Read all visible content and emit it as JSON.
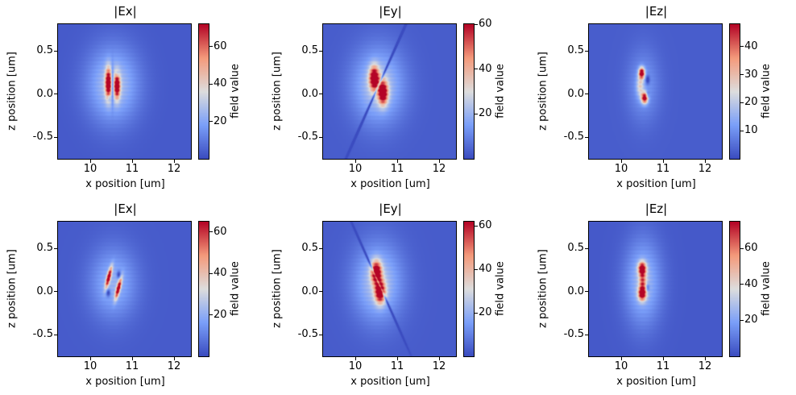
{
  "figure": {
    "background": "#ffffff",
    "xlabel": "x position [um]",
    "ylabel": "z position [um]",
    "colorbar_label": "field value",
    "x_ticks": [
      10,
      11,
      12
    ],
    "x_tick_labels": [
      "10",
      "11",
      "12"
    ],
    "y_ticks": [
      0.5,
      0.0,
      -0.5
    ],
    "y_tick_labels": [
      "0.5",
      "0.0",
      "-0.5"
    ],
    "x_range": [
      9.23,
      12.4
    ],
    "y_range": [
      -0.75,
      0.81
    ],
    "grid": false,
    "colormap": "coolwarm",
    "colormap_anchors": [
      "#3b4cc0",
      "#7b9ff9",
      "#dddddd",
      "#f49a7b",
      "#b40426"
    ]
  },
  "chart_data": [
    {
      "type": "heatmap",
      "title": "|Ex|",
      "row": 1,
      "xlabel": "x position [um]",
      "ylabel": "z position [um]",
      "colorbar": {
        "label": "field value",
        "vmin": 0,
        "vmax": 72,
        "ticks": [
          20,
          40,
          60
        ],
        "tick_labels": [
          "20",
          "40",
          "60"
        ]
      },
      "heatmap": {
        "base": 3,
        "stripe": 0.07,
        "blobs": [
          {
            "x": 10.53,
            "z": 0.11,
            "sx": 0.42,
            "sz": 0.3,
            "amp": 26
          },
          {
            "x": 10.42,
            "z": 0.13,
            "sx": 0.05,
            "sz": 0.12,
            "amp": 64
          },
          {
            "x": 10.63,
            "z": 0.1,
            "sx": 0.05,
            "sz": 0.1,
            "amp": 64
          },
          {
            "x": 10.52,
            "z": 0.11,
            "sx": 0.02,
            "sz": 0.14,
            "amp": -26
          },
          {
            "x": 10.44,
            "z": -0.04,
            "sx": 0.03,
            "sz": 0.025,
            "amp": -16
          },
          {
            "x": 10.64,
            "z": 0.24,
            "sx": 0.03,
            "sz": 0.025,
            "amp": -14
          }
        ]
      }
    },
    {
      "type": "heatmap",
      "title": "|Ey|",
      "row": 1,
      "xlabel": "x position [um]",
      "ylabel": "z position [um]",
      "colorbar": {
        "label": "field value",
        "vmin": 0,
        "vmax": 60,
        "ticks": [
          20,
          40,
          60
        ],
        "tick_labels": [
          "20",
          "40",
          "60"
        ]
      },
      "heatmap": {
        "base": 3,
        "stripe": 0.07,
        "blobs": [
          {
            "x": 10.54,
            "z": 0.1,
            "sx": 0.42,
            "sz": 0.3,
            "amp": 22
          },
          {
            "x": 10.44,
            "z": 0.19,
            "sx": 0.08,
            "sz": 0.095,
            "amp": 57
          },
          {
            "x": 10.65,
            "z": 0.02,
            "sx": 0.08,
            "sz": 0.095,
            "amp": 57
          },
          {
            "x": 10.545,
            "z": 0.105,
            "sx": 0.018,
            "sz": 0.55,
            "amp": -24,
            "rot": 0.42
          }
        ]
      }
    },
    {
      "type": "heatmap",
      "title": "|Ez|",
      "row": 1,
      "xlabel": "x position [um]",
      "ylabel": "z position [um]",
      "colorbar": {
        "label": "field value",
        "vmin": 0,
        "vmax": 48,
        "ticks": [
          10,
          20,
          30,
          40
        ],
        "tick_labels": [
          "10",
          "20",
          "30",
          "40"
        ]
      },
      "heatmap": {
        "base": 2.5,
        "stripe": 0.07,
        "blobs": [
          {
            "x": 10.52,
            "z": 0.1,
            "sx": 0.26,
            "sz": 0.28,
            "amp": 9
          },
          {
            "x": 10.48,
            "z": 0.25,
            "sx": 0.05,
            "sz": 0.045,
            "amp": 44
          },
          {
            "x": 10.55,
            "z": -0.04,
            "sx": 0.055,
            "sz": 0.045,
            "amp": 44
          },
          {
            "x": 10.44,
            "z": 0.1,
            "sx": 0.06,
            "sz": 0.09,
            "amp": 16
          },
          {
            "x": 10.62,
            "z": 0.17,
            "sx": 0.035,
            "sz": 0.035,
            "amp": -13
          },
          {
            "x": 10.62,
            "z": 0.0,
            "sx": 0.03,
            "sz": 0.03,
            "amp": -9
          }
        ]
      }
    },
    {
      "type": "heatmap",
      "title": "|Ex|",
      "row": 2,
      "xlabel": "x position [um]",
      "ylabel": "z position [um]",
      "colorbar": {
        "label": "field value",
        "vmin": 0,
        "vmax": 65,
        "ticks": [
          20,
          40,
          60
        ],
        "tick_labels": [
          "20",
          "40",
          "60"
        ]
      },
      "heatmap": {
        "base": 3,
        "stripe": 0.07,
        "blobs": [
          {
            "x": 10.54,
            "z": 0.1,
            "sx": 0.38,
            "sz": 0.28,
            "amp": 18
          },
          {
            "x": 10.43,
            "z": 0.17,
            "sx": 0.033,
            "sz": 0.085,
            "amp": 58,
            "rot": 0.25
          },
          {
            "x": 10.66,
            "z": 0.04,
            "sx": 0.033,
            "sz": 0.085,
            "amp": 58,
            "rot": 0.25
          },
          {
            "x": 10.42,
            "z": -0.01,
            "sx": 0.035,
            "sz": 0.03,
            "amp": -20
          },
          {
            "x": 10.67,
            "z": 0.2,
            "sx": 0.035,
            "sz": 0.03,
            "amp": -20
          }
        ]
      }
    },
    {
      "type": "heatmap",
      "title": "|Ey|",
      "row": 2,
      "xlabel": "x position [um]",
      "ylabel": "z position [um]",
      "colorbar": {
        "label": "field value",
        "vmin": 0,
        "vmax": 62,
        "ticks": [
          20,
          40,
          60
        ],
        "tick_labels": [
          "20",
          "40",
          "60"
        ]
      },
      "heatmap": {
        "base": 3,
        "stripe": 0.07,
        "blobs": [
          {
            "x": 10.53,
            "z": 0.11,
            "sx": 0.4,
            "sz": 0.31,
            "amp": 22
          },
          {
            "x": 10.49,
            "z": 0.23,
            "sx": 0.085,
            "sz": 0.09,
            "amp": 58
          },
          {
            "x": 10.58,
            "z": 0.0,
            "sx": 0.085,
            "sz": 0.09,
            "amp": 58
          },
          {
            "x": 10.535,
            "z": 0.115,
            "sx": 0.018,
            "sz": 0.42,
            "amp": -24,
            "rot": -0.42
          }
        ]
      }
    },
    {
      "type": "heatmap",
      "title": "|Ez|",
      "row": 2,
      "xlabel": "x position [um]",
      "ylabel": "z position [um]",
      "colorbar": {
        "label": "field value",
        "vmin": 0,
        "vmax": 75,
        "ticks": [
          20,
          40,
          60
        ],
        "tick_labels": [
          "20",
          "40",
          "60"
        ]
      },
      "heatmap": {
        "base": 3,
        "stripe": 0.07,
        "blobs": [
          {
            "x": 10.51,
            "z": 0.11,
            "sx": 0.3,
            "sz": 0.34,
            "amp": 24
          },
          {
            "x": 10.49,
            "z": 0.27,
            "sx": 0.065,
            "sz": 0.055,
            "amp": 68
          },
          {
            "x": 10.49,
            "z": -0.02,
            "sx": 0.065,
            "sz": 0.055,
            "amp": 68
          },
          {
            "x": 10.5,
            "z": 0.12,
            "sx": 0.06,
            "sz": 0.07,
            "amp": 38
          },
          {
            "x": 10.62,
            "z": 0.05,
            "sx": 0.03,
            "sz": 0.03,
            "amp": -18
          }
        ]
      }
    }
  ]
}
